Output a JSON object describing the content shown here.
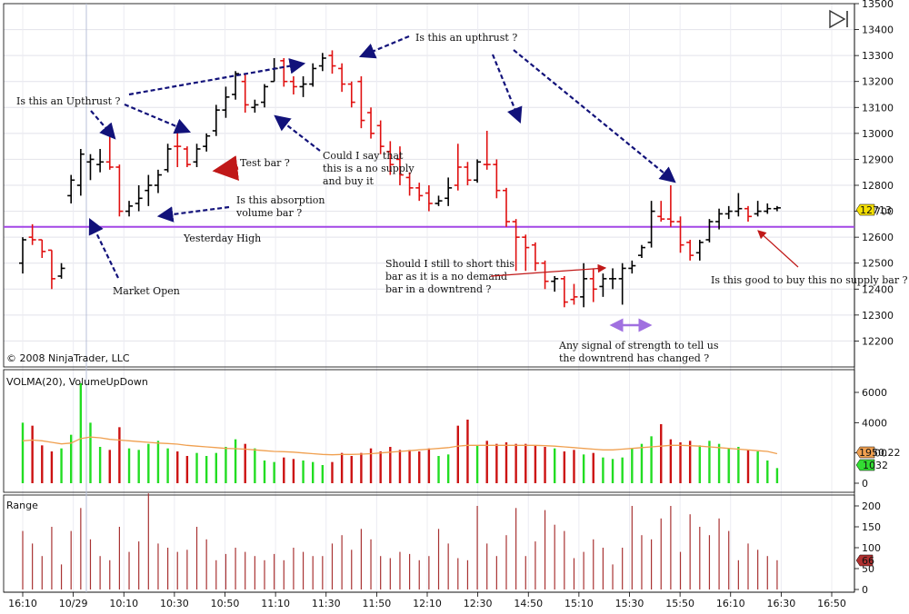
{
  "copyright": "© 2008 NinjaTrader, LLC",
  "chart_data": [
    {
      "type": "candlestick",
      "panel": "price",
      "ylim": [
        12100,
        13500
      ],
      "yticks": [
        12200,
        12300,
        12400,
        12500,
        12600,
        12700,
        12800,
        12900,
        13000,
        13100,
        13200,
        13300,
        13400,
        13500
      ],
      "current_price_label": "12713",
      "horizontal_line": {
        "value": 12640,
        "label": "Yesterday High",
        "color": "#a347e6"
      },
      "bars": [
        {
          "o": 12500,
          "h": 12600,
          "l": 12460,
          "c": 12590,
          "dir": "up"
        },
        {
          "o": 12600,
          "h": 12650,
          "l": 12570,
          "c": 12590,
          "dir": "down"
        },
        {
          "o": 12590,
          "h": 12590,
          "l": 12520,
          "c": 12545,
          "dir": "down"
        },
        {
          "o": 12550,
          "h": 12550,
          "l": 12400,
          "c": 12440,
          "dir": "down"
        },
        {
          "o": 12450,
          "h": 12500,
          "l": 12440,
          "c": 12480,
          "dir": "up"
        },
        {
          "o": 12760,
          "h": 12840,
          "l": 12730,
          "c": 12820,
          "dir": "up"
        },
        {
          "o": 12800,
          "h": 12940,
          "l": 12760,
          "c": 12920,
          "dir": "up"
        },
        {
          "o": 12890,
          "h": 12920,
          "l": 12820,
          "c": 12900,
          "dir": "up"
        },
        {
          "o": 12880,
          "h": 12940,
          "l": 12850,
          "c": 12890,
          "dir": "up"
        },
        {
          "o": 12890,
          "h": 13010,
          "l": 12860,
          "c": 12870,
          "dir": "down"
        },
        {
          "o": 12870,
          "h": 12880,
          "l": 12680,
          "c": 12700,
          "dir": "down"
        },
        {
          "o": 12700,
          "h": 12740,
          "l": 12680,
          "c": 12720,
          "dir": "up"
        },
        {
          "o": 12730,
          "h": 12800,
          "l": 12700,
          "c": 12750,
          "dir": "up"
        },
        {
          "o": 12780,
          "h": 12840,
          "l": 12720,
          "c": 12800,
          "dir": "up"
        },
        {
          "o": 12800,
          "h": 12860,
          "l": 12770,
          "c": 12840,
          "dir": "up"
        },
        {
          "o": 12860,
          "h": 12960,
          "l": 12850,
          "c": 12940,
          "dir": "up"
        },
        {
          "o": 12950,
          "h": 13010,
          "l": 12870,
          "c": 12950,
          "dir": "down"
        },
        {
          "o": 12940,
          "h": 12950,
          "l": 12870,
          "c": 12880,
          "dir": "down"
        },
        {
          "o": 12890,
          "h": 12960,
          "l": 12870,
          "c": 12940,
          "dir": "up"
        },
        {
          "o": 12950,
          "h": 13000,
          "l": 12930,
          "c": 12990,
          "dir": "up"
        },
        {
          "o": 13010,
          "h": 13110,
          "l": 12990,
          "c": 13090,
          "dir": "up"
        },
        {
          "o": 13090,
          "h": 13180,
          "l": 13060,
          "c": 13140,
          "dir": "up"
        },
        {
          "o": 13150,
          "h": 13240,
          "l": 13130,
          "c": 13230,
          "dir": "up"
        },
        {
          "o": 13200,
          "h": 13230,
          "l": 13080,
          "c": 13110,
          "dir": "down"
        },
        {
          "o": 13100,
          "h": 13130,
          "l": 13080,
          "c": 13110,
          "dir": "up"
        },
        {
          "o": 13120,
          "h": 13190,
          "l": 13100,
          "c": 13180,
          "dir": "up"
        },
        {
          "o": 13200,
          "h": 13290,
          "l": 13200,
          "c": 13250,
          "dir": "up"
        },
        {
          "o": 13280,
          "h": 13290,
          "l": 13180,
          "c": 13200,
          "dir": "down"
        },
        {
          "o": 13200,
          "h": 13220,
          "l": 13150,
          "c": 13180,
          "dir": "down"
        },
        {
          "o": 13180,
          "h": 13220,
          "l": 13140,
          "c": 13190,
          "dir": "up"
        },
        {
          "o": 13190,
          "h": 13270,
          "l": 13180,
          "c": 13250,
          "dir": "up"
        },
        {
          "o": 13260,
          "h": 13310,
          "l": 13240,
          "c": 13290,
          "dir": "up"
        },
        {
          "o": 13300,
          "h": 13320,
          "l": 13230,
          "c": 13260,
          "dir": "down"
        },
        {
          "o": 13250,
          "h": 13270,
          "l": 13160,
          "c": 13190,
          "dir": "down"
        },
        {
          "o": 13190,
          "h": 13200,
          "l": 13100,
          "c": 13120,
          "dir": "down"
        },
        {
          "o": 13200,
          "h": 13220,
          "l": 13020,
          "c": 13050,
          "dir": "down"
        },
        {
          "o": 13080,
          "h": 13100,
          "l": 12980,
          "c": 13000,
          "dir": "down"
        },
        {
          "o": 13030,
          "h": 13050,
          "l": 12920,
          "c": 12950,
          "dir": "down"
        },
        {
          "o": 12930,
          "h": 12970,
          "l": 12840,
          "c": 12880,
          "dir": "down"
        },
        {
          "o": 12900,
          "h": 12950,
          "l": 12800,
          "c": 12840,
          "dir": "down"
        },
        {
          "o": 12830,
          "h": 12850,
          "l": 12760,
          "c": 12790,
          "dir": "down"
        },
        {
          "o": 12790,
          "h": 12810,
          "l": 12740,
          "c": 12760,
          "dir": "down"
        },
        {
          "o": 12770,
          "h": 12800,
          "l": 12700,
          "c": 12730,
          "dir": "down"
        },
        {
          "o": 12730,
          "h": 12760,
          "l": 12720,
          "c": 12740,
          "dir": "up"
        },
        {
          "o": 12750,
          "h": 12830,
          "l": 12720,
          "c": 12790,
          "dir": "up"
        },
        {
          "o": 12800,
          "h": 12960,
          "l": 12780,
          "c": 12870,
          "dir": "down"
        },
        {
          "o": 12870,
          "h": 12890,
          "l": 12800,
          "c": 12820,
          "dir": "down"
        },
        {
          "o": 12820,
          "h": 12900,
          "l": 12810,
          "c": 12890,
          "dir": "up"
        },
        {
          "o": 12880,
          "h": 13010,
          "l": 12860,
          "c": 12880,
          "dir": "down"
        },
        {
          "o": 12880,
          "h": 12900,
          "l": 12750,
          "c": 12780,
          "dir": "down"
        },
        {
          "o": 12780,
          "h": 12790,
          "l": 12640,
          "c": 12660,
          "dir": "down"
        },
        {
          "o": 12660,
          "h": 12670,
          "l": 12470,
          "c": 12600,
          "dir": "down"
        },
        {
          "o": 12600,
          "h": 12610,
          "l": 12470,
          "c": 12560,
          "dir": "down"
        },
        {
          "o": 12570,
          "h": 12580,
          "l": 12470,
          "c": 12500,
          "dir": "down"
        },
        {
          "o": 12500,
          "h": 12510,
          "l": 12400,
          "c": 12430,
          "dir": "down"
        },
        {
          "o": 12430,
          "h": 12450,
          "l": 12390,
          "c": 12440,
          "dir": "up"
        },
        {
          "o": 12440,
          "h": 12450,
          "l": 12330,
          "c": 12350,
          "dir": "down"
        },
        {
          "o": 12360,
          "h": 12420,
          "l": 12340,
          "c": 12370,
          "dir": "down"
        },
        {
          "o": 12370,
          "h": 12500,
          "l": 12330,
          "c": 12440,
          "dir": "up"
        },
        {
          "o": 12440,
          "h": 12480,
          "l": 12350,
          "c": 12400,
          "dir": "down"
        },
        {
          "o": 12410,
          "h": 12460,
          "l": 12370,
          "c": 12440,
          "dir": "up"
        },
        {
          "o": 12440,
          "h": 12480,
          "l": 12400,
          "c": 12440,
          "dir": "up"
        },
        {
          "o": 12440,
          "h": 12500,
          "l": 12340,
          "c": 12480,
          "dir": "up"
        },
        {
          "o": 12480,
          "h": 12510,
          "l": 12460,
          "c": 12490,
          "dir": "up"
        },
        {
          "o": 12530,
          "h": 12570,
          "l": 12520,
          "c": 12560,
          "dir": "up"
        },
        {
          "o": 12580,
          "h": 12740,
          "l": 12560,
          "c": 12700,
          "dir": "up"
        },
        {
          "o": 12680,
          "h": 12740,
          "l": 12660,
          "c": 12670,
          "dir": "down"
        },
        {
          "o": 12670,
          "h": 12800,
          "l": 12640,
          "c": 12660,
          "dir": "down"
        },
        {
          "o": 12660,
          "h": 12680,
          "l": 12540,
          "c": 12570,
          "dir": "down"
        },
        {
          "o": 12580,
          "h": 12590,
          "l": 12510,
          "c": 12530,
          "dir": "down"
        },
        {
          "o": 12540,
          "h": 12590,
          "l": 12510,
          "c": 12580,
          "dir": "up"
        },
        {
          "o": 12590,
          "h": 12670,
          "l": 12580,
          "c": 12660,
          "dir": "up"
        },
        {
          "o": 12660,
          "h": 12710,
          "l": 12630,
          "c": 12690,
          "dir": "up"
        },
        {
          "o": 12690,
          "h": 12720,
          "l": 12670,
          "c": 12700,
          "dir": "up"
        },
        {
          "o": 12700,
          "h": 12770,
          "l": 12680,
          "c": 12710,
          "dir": "up"
        },
        {
          "o": 12710,
          "h": 12720,
          "l": 12660,
          "c": 12680,
          "dir": "down"
        },
        {
          "o": 12690,
          "h": 12740,
          "l": 12680,
          "c": 12700,
          "dir": "up"
        },
        {
          "o": 12700,
          "h": 12730,
          "l": 12690,
          "c": 12710,
          "dir": "up"
        },
        {
          "o": 12710,
          "h": 12720,
          "l": 12700,
          "c": 12713,
          "dir": "up"
        }
      ]
    },
    {
      "type": "bar",
      "panel": "volume",
      "title": "VOLMA(20), VolumeUpDown",
      "ylim": [
        0,
        7000
      ],
      "yticks": [
        0,
        2000,
        4000,
        6000
      ],
      "ma_label": "1950.22",
      "last_label": "1032",
      "volume": [
        4000,
        3800,
        2500,
        2100,
        2300,
        3200,
        6600,
        4000,
        2400,
        2200,
        3700,
        2300,
        2200,
        2600,
        2800,
        2300,
        2100,
        1800,
        2000,
        1800,
        2000,
        2400,
        2900,
        2600,
        2300,
        1500,
        1400,
        1700,
        1600,
        1500,
        1400,
        1200,
        1400,
        2000,
        1800,
        2000,
        2300,
        2100,
        2400,
        2200,
        2200,
        2100,
        2300,
        1800,
        1900,
        3800,
        4200,
        2500,
        2800,
        2600,
        2700,
        2600,
        2600,
        2500,
        2400,
        2300,
        2100,
        2200,
        1900,
        2000,
        1700,
        1600,
        1700,
        2300,
        2600,
        3100,
        3900,
        2900,
        2700,
        2800,
        2500,
        2800,
        2600,
        2300,
        2400,
        2200,
        2100,
        1500,
        1000
      ],
      "volume_ma": [
        2800,
        2850,
        2800,
        2700,
        2600,
        2650,
        2950,
        3050,
        3000,
        2900,
        2850,
        2800,
        2750,
        2700,
        2650,
        2620,
        2580,
        2500,
        2450,
        2400,
        2350,
        2300,
        2280,
        2250,
        2200,
        2150,
        2100,
        2080,
        2050,
        2000,
        1950,
        1900,
        1880,
        1900,
        1900,
        1920,
        1950,
        2000,
        2050,
        2100,
        2150,
        2200,
        2250,
        2300,
        2350,
        2450,
        2500,
        2500,
        2500,
        2500,
        2500,
        2500,
        2500,
        2500,
        2480,
        2450,
        2400,
        2350,
        2300,
        2250,
        2200,
        2200,
        2250,
        2300,
        2350,
        2400,
        2450,
        2500,
        2500,
        2480,
        2450,
        2400,
        2350,
        2300,
        2250,
        2200,
        2150,
        2100,
        1950
      ]
    },
    {
      "type": "bar",
      "panel": "range",
      "title": "Range",
      "ylim": [
        0,
        220
      ],
      "yticks": [
        0,
        50,
        100,
        150,
        200
      ],
      "last_label": "66",
      "range": [
        140,
        110,
        80,
        150,
        60,
        140,
        195,
        120,
        80,
        70,
        150,
        90,
        115,
        230,
        110,
        100,
        90,
        95,
        150,
        120,
        70,
        85,
        100,
        90,
        80,
        70,
        85,
        70,
        100,
        90,
        80,
        80,
        110,
        130,
        95,
        145,
        120,
        80,
        75,
        90,
        85,
        70,
        80,
        145,
        110,
        75,
        70,
        200,
        110,
        80,
        130,
        195,
        80,
        115,
        190,
        155,
        140,
        75,
        90,
        120,
        100,
        60,
        100,
        200,
        130,
        120,
        170,
        200,
        90,
        180,
        150,
        130,
        170,
        140,
        70,
        110,
        95,
        80,
        70
      ],
      "color": "#a83232"
    }
  ],
  "xaxis_labels": [
    "16:10",
    "10/29",
    "10:10",
    "10:30",
    "10:50",
    "11:10",
    "11:30",
    "11:50",
    "12:10",
    "12:30",
    "14:50",
    "15:10",
    "15:30",
    "15:50",
    "16:10",
    "16:30",
    "16:50"
  ],
  "annotations": {
    "upthrust_left": "Is this an Upthrust ?",
    "upthrust_right": "Is this an upthrust ?",
    "test_bar": "Test bar ?",
    "absorption": [
      "Is this absorption",
      "volume bar ?"
    ],
    "yesterday_high": "Yesterday High",
    "market_open": "Market Open",
    "no_supply": [
      "Could I say that",
      "this is a no supply",
      "and buy it"
    ],
    "no_demand": [
      "Should I still to short this",
      "bar as it is a no demand",
      "bar in a downtrend ?"
    ],
    "strength": [
      "Any signal of strength to tell us",
      "the downtrend has changed  ?"
    ],
    "buy_no_supply": "Is this good to buy this no supply bar ?"
  },
  "colors": {
    "up": "#000000",
    "down": "#e01010",
    "vol_up": "#22dd22",
    "vol_down": "#cc1111",
    "ma": "#f0a050",
    "yesterday_line": "#a347e6",
    "label_price": "#f5e000",
    "label_ma": "#f0a050",
    "label_last": "#33dd33",
    "label_range": "#b03030"
  }
}
